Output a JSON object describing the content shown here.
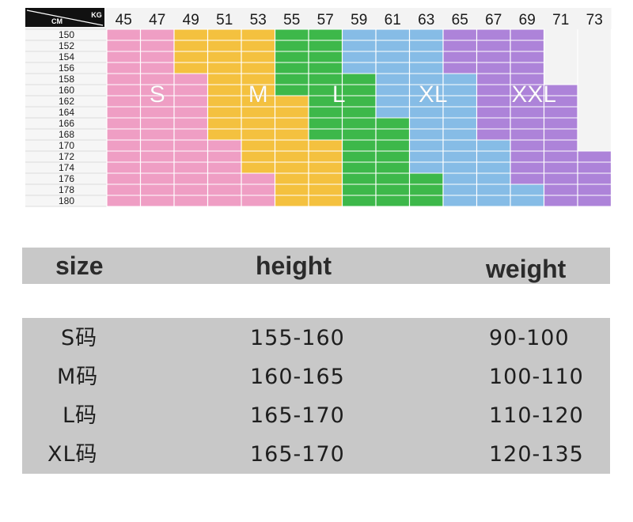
{
  "chart_data": {
    "type": "heatmap",
    "corner": {
      "left": "CM",
      "right": "KG"
    },
    "weights_kg": [
      45,
      47,
      49,
      51,
      53,
      55,
      57,
      59,
      61,
      63,
      65,
      67,
      69,
      71,
      73
    ],
    "heights_cm": [
      150,
      152,
      154,
      156,
      158,
      160,
      162,
      164,
      166,
      168,
      170,
      172,
      174,
      176,
      178,
      180
    ],
    "sizes": [
      {
        "name": "S",
        "color": "#ef9ec4"
      },
      {
        "name": "M",
        "color": "#f4c13f"
      },
      {
        "name": "L",
        "color": "#3db84a"
      },
      {
        "name": "XL",
        "color": "#86bce6"
      },
      {
        "name": "XXL",
        "color": "#ad83d9"
      }
    ],
    "cell_size_index": [
      [
        0,
        0,
        1,
        1,
        1,
        2,
        2,
        3,
        3,
        3,
        4,
        4,
        4,
        null,
        null
      ],
      [
        0,
        0,
        1,
        1,
        1,
        2,
        2,
        3,
        3,
        3,
        4,
        4,
        4,
        null,
        null
      ],
      [
        0,
        0,
        1,
        1,
        1,
        2,
        2,
        3,
        3,
        3,
        4,
        4,
        4,
        null,
        null
      ],
      [
        0,
        0,
        1,
        1,
        1,
        2,
        2,
        3,
        3,
        3,
        4,
        4,
        4,
        null,
        null
      ],
      [
        0,
        0,
        0,
        1,
        1,
        2,
        2,
        2,
        3,
        3,
        3,
        4,
        4,
        null,
        null
      ],
      [
        0,
        0,
        0,
        1,
        1,
        2,
        2,
        2,
        3,
        3,
        3,
        4,
        4,
        4,
        null
      ],
      [
        0,
        0,
        0,
        1,
        1,
        1,
        2,
        2,
        3,
        3,
        3,
        4,
        4,
        4,
        null
      ],
      [
        0,
        0,
        0,
        1,
        1,
        1,
        2,
        2,
        3,
        3,
        3,
        4,
        4,
        4,
        null
      ],
      [
        0,
        0,
        0,
        1,
        1,
        1,
        2,
        2,
        2,
        3,
        3,
        4,
        4,
        4,
        null
      ],
      [
        0,
        0,
        0,
        1,
        1,
        1,
        2,
        2,
        2,
        3,
        3,
        4,
        4,
        4,
        null
      ],
      [
        0,
        0,
        0,
        0,
        1,
        1,
        1,
        2,
        2,
        3,
        3,
        3,
        4,
        4,
        null
      ],
      [
        0,
        0,
        0,
        0,
        1,
        1,
        1,
        2,
        2,
        3,
        3,
        3,
        4,
        4,
        4
      ],
      [
        0,
        0,
        0,
        0,
        1,
        1,
        1,
        2,
        2,
        3,
        3,
        3,
        4,
        4,
        4
      ],
      [
        0,
        0,
        0,
        0,
        0,
        1,
        1,
        2,
        2,
        2,
        3,
        3,
        4,
        4,
        4
      ],
      [
        0,
        0,
        0,
        0,
        0,
        1,
        1,
        2,
        2,
        2,
        3,
        3,
        3,
        4,
        4
      ],
      [
        0,
        0,
        0,
        0,
        0,
        1,
        1,
        2,
        2,
        2,
        3,
        3,
        3,
        4,
        4
      ]
    ],
    "labels": [
      {
        "text": "S",
        "weight_col": 1.5,
        "height_row": 5.5
      },
      {
        "text": "M",
        "weight_col": 4.5,
        "height_row": 5.5
      },
      {
        "text": "L",
        "weight_col": 6.9,
        "height_row": 5.5
      },
      {
        "text": "XL",
        "weight_col": 9.7,
        "height_row": 5.5
      },
      {
        "text": "XXL",
        "weight_col": 12.7,
        "height_row": 5.5
      }
    ]
  },
  "table": {
    "headers": {
      "size": "size",
      "height": "height",
      "weight": "weight"
    },
    "rows": [
      {
        "size": "S码",
        "height": "155-160",
        "weight": "90-100"
      },
      {
        "size": "M码",
        "height": "160-165",
        "weight": "100-110"
      },
      {
        "size": "L码",
        "height": "165-170",
        "weight": "110-120"
      },
      {
        "size": "XL码",
        "height": "165-170",
        "weight": "120-135"
      }
    ]
  }
}
